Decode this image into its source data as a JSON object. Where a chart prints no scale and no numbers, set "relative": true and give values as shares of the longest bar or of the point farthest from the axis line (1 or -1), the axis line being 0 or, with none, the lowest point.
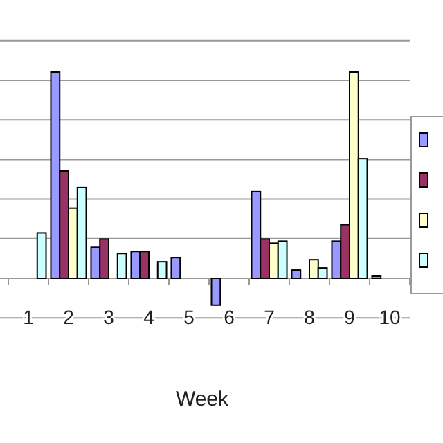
{
  "chart_data": {
    "type": "bar",
    "relative": true,
    "xlabel": "Week",
    "categories": [
      "1",
      "2",
      "3",
      "4",
      "5",
      "6",
      "7",
      "8",
      "9",
      "10"
    ],
    "grid": "y",
    "series": [
      {
        "color": "#9999ff",
        "values": [
          null,
          1.0,
          0.15,
          0.13,
          0.1,
          -0.13,
          0.42,
          0.04,
          0.18,
          0.01
        ]
      },
      {
        "color": "#993366",
        "values": [
          null,
          0.52,
          0.19,
          0.13,
          null,
          null,
          0.19,
          null,
          0.26,
          null
        ]
      },
      {
        "color": "#ffffcc",
        "values": [
          null,
          0.34,
          null,
          null,
          null,
          null,
          0.17,
          0.09,
          1.0,
          null
        ]
      },
      {
        "color": "#ccffff",
        "values": [
          0.22,
          0.44,
          0.12,
          0.08,
          null,
          null,
          0.18,
          0.05,
          0.58,
          null
        ]
      }
    ]
  }
}
